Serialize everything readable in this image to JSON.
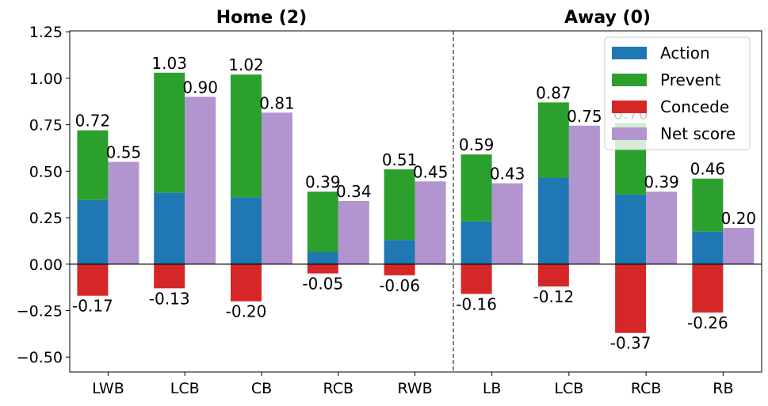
{
  "chart_data": {
    "type": "bar",
    "ylim": [
      -0.58,
      1.255
    ],
    "yticks": [
      -0.5,
      -0.25,
      0.0,
      0.25,
      0.5,
      0.75,
      1.0,
      1.25
    ],
    "ytick_labels": [
      "−0.50",
      "−0.25",
      "0.00",
      "0.25",
      "0.50",
      "0.75",
      "1.00",
      "1.25"
    ],
    "legend_position": "top-right",
    "grid": false,
    "colors": {
      "action": "#1f77b4",
      "prevent": "#2ca02c",
      "concede": "#d62728",
      "net": "#b294cf"
    },
    "legend": [
      {
        "key": "action",
        "label": "Action"
      },
      {
        "key": "prevent",
        "label": "Prevent"
      },
      {
        "key": "concede",
        "label": "Concede"
      },
      {
        "key": "net",
        "label": "Net score"
      }
    ],
    "panels": [
      {
        "title": "Home (2)",
        "categories": [
          "LWB",
          "LCB",
          "CB",
          "RCB",
          "RWB"
        ],
        "action": [
          0.345,
          0.385,
          0.36,
          0.065,
          0.13
        ],
        "prevent": [
          0.375,
          0.645,
          0.66,
          0.325,
          0.38
        ],
        "concede": [
          -0.17,
          -0.13,
          -0.2,
          -0.05,
          -0.06
        ],
        "net": [
          0.55,
          0.9,
          0.815,
          0.34,
          0.445
        ],
        "positive_labels": [
          "0.72",
          "1.03",
          "1.02",
          "0.39",
          "0.51"
        ],
        "concede_labels": [
          "-0.17",
          "-0.13",
          "-0.20",
          "-0.05",
          "-0.06"
        ],
        "net_labels": [
          "0.55",
          "0.90",
          "0.81",
          "0.34",
          "0.45"
        ]
      },
      {
        "title": "Away (0)",
        "categories": [
          "LB",
          "LCB",
          "RCB",
          "RB"
        ],
        "action": [
          0.23,
          0.465,
          0.375,
          0.175
        ],
        "prevent": [
          0.36,
          0.405,
          0.385,
          0.285
        ],
        "concede": [
          -0.16,
          -0.12,
          -0.37,
          -0.26
        ],
        "net": [
          0.435,
          0.745,
          0.39,
          0.195
        ],
        "positive_labels": [
          "0.59",
          "0.87",
          "0.76",
          "0.46"
        ],
        "concede_labels": [
          "-0.16",
          "-0.12",
          "-0.37",
          "-0.26"
        ],
        "net_labels": [
          "0.43",
          "0.75",
          "0.39",
          "0.20"
        ]
      }
    ]
  }
}
